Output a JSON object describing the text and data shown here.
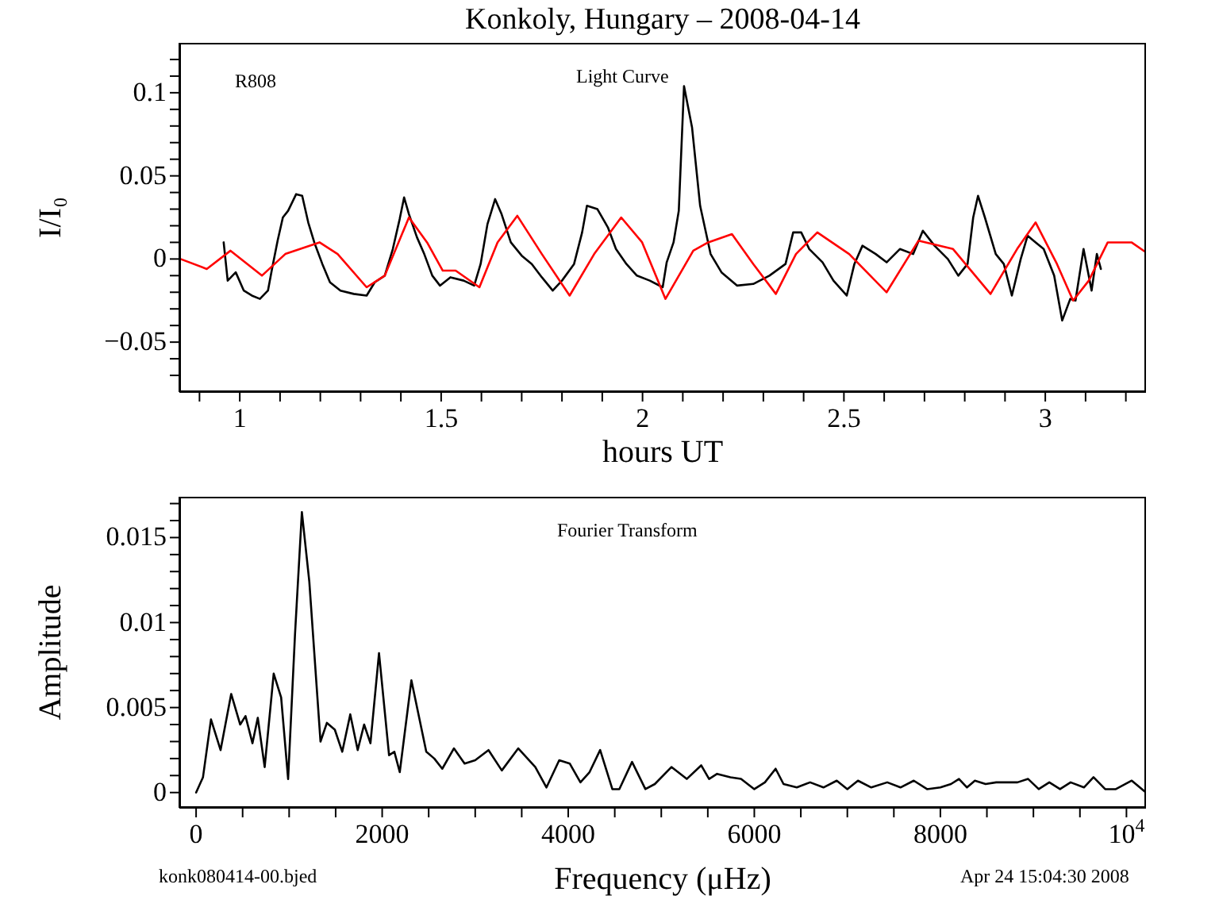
{
  "chart_data": [
    {
      "type": "line",
      "title": "Konkoly, Hungary – 2008-04-14",
      "xlabel": "hours UT",
      "ylabel": "I/I₀",
      "annotations": [
        "R808",
        "Light Curve"
      ],
      "xlim": [
        0.85,
        3.25
      ],
      "ylim": [
        -0.08,
        0.13
      ],
      "xticks": [
        {
          "value": 0.9,
          "label": null
        },
        1,
        {
          "value": 1.1,
          "label": null
        },
        {
          "value": 1.2,
          "label": null
        },
        {
          "value": 1.3,
          "label": null
        },
        {
          "value": 1.4,
          "label": null
        },
        1.5,
        {
          "value": 1.6,
          "label": null
        },
        {
          "value": 1.7,
          "label": null
        },
        {
          "value": 1.8,
          "label": null
        },
        {
          "value": 1.9,
          "label": null
        },
        2,
        {
          "value": 2.1,
          "label": null
        },
        {
          "value": 2.2,
          "label": null
        },
        {
          "value": 2.3,
          "label": null
        },
        {
          "value": 2.4,
          "label": null
        },
        2.5,
        {
          "value": 2.6,
          "label": null
        },
        {
          "value": 2.7,
          "label": null
        },
        {
          "value": 2.8,
          "label": null
        },
        {
          "value": 2.9,
          "label": null
        },
        3,
        {
          "value": 3.1,
          "label": null
        },
        {
          "value": 3.2,
          "label": null
        }
      ],
      "yticks": [
        {
          "value": -0.07,
          "label": null
        },
        {
          "value": -0.06,
          "label": null
        },
        {
          "value": -0.05,
          "label": "−0.05"
        },
        {
          "value": -0.04,
          "label": null
        },
        {
          "value": -0.03,
          "label": null
        },
        {
          "value": -0.02,
          "label": null
        },
        {
          "value": -0.01,
          "label": null
        },
        0,
        {
          "value": 0.01,
          "label": null
        },
        {
          "value": 0.02,
          "label": null
        },
        {
          "value": 0.03,
          "label": null
        },
        {
          "value": 0.04,
          "label": null
        },
        0.05,
        {
          "value": 0.06,
          "label": null
        },
        {
          "value": 0.07,
          "label": null
        },
        {
          "value": 0.08,
          "label": null
        },
        {
          "value": 0.09,
          "label": null
        },
        0.1,
        {
          "value": 0.11,
          "label": null
        },
        {
          "value": 0.12,
          "label": null
        }
      ],
      "series": [
        {
          "color": "#000000",
          "x": [
            0.96,
            0.97,
            0.99,
            1.01,
            1.03,
            1.05,
            1.07,
            1.08,
            1.094,
            1.107,
            1.12,
            1.14,
            1.155,
            1.17,
            1.185,
            1.205,
            1.224,
            1.25,
            1.283,
            1.315,
            1.335,
            1.36,
            1.38,
            1.397,
            1.408,
            1.42,
            1.44,
            1.458,
            1.478,
            1.497,
            1.523,
            1.556,
            1.582,
            1.598,
            1.615,
            1.634,
            1.65,
            1.673,
            1.7,
            1.725,
            1.75,
            1.777,
            1.8,
            1.83,
            1.85,
            1.862,
            1.888,
            1.914,
            1.934,
            1.96,
            1.986,
            2.018,
            2.05,
            2.06,
            2.077,
            2.09,
            2.103,
            2.123,
            2.143,
            2.169,
            2.196,
            2.235,
            2.275,
            2.315,
            2.355,
            2.374,
            2.394,
            2.414,
            2.447,
            2.474,
            2.507,
            2.526,
            2.546,
            2.579,
            2.606,
            2.639,
            2.672,
            2.696,
            2.725,
            2.758,
            2.784,
            2.807,
            2.821,
            2.833,
            2.85,
            2.877,
            2.897,
            2.917,
            2.939,
            2.956,
            2.976,
            2.996,
            3.022,
            3.042,
            3.062,
            3.075,
            3.095,
            3.115,
            3.128,
            3.138
          ],
          "values": [
            0.01,
            -0.013,
            -0.008,
            -0.019,
            -0.022,
            -0.024,
            -0.019,
            -0.006,
            0.011,
            0.025,
            0.029,
            0.039,
            0.038,
            0.022,
            0.01,
            -0.003,
            -0.014,
            -0.019,
            -0.021,
            -0.022,
            -0.014,
            -0.01,
            0.006,
            0.024,
            0.037,
            0.027,
            0.013,
            0.003,
            -0.01,
            -0.016,
            -0.011,
            -0.013,
            -0.016,
            -0.003,
            0.021,
            0.036,
            0.027,
            0.01,
            0.002,
            -0.003,
            -0.011,
            -0.019,
            -0.013,
            -0.003,
            0.016,
            0.032,
            0.03,
            0.019,
            0.006,
            -0.003,
            -0.01,
            -0.013,
            -0.017,
            -0.002,
            0.01,
            0.029,
            0.104,
            0.079,
            0.032,
            0.003,
            -0.008,
            -0.016,
            -0.015,
            -0.01,
            -0.003,
            0.016,
            0.016,
            0.006,
            -0.002,
            -0.013,
            -0.022,
            -0.003,
            0.008,
            0.003,
            -0.002,
            0.006,
            0.003,
            0.017,
            0.008,
            0,
            -0.01,
            -0.003,
            0.025,
            0.038,
            0.025,
            0.003,
            -0.003,
            -0.022,
            0,
            0.014,
            0.01,
            0.006,
            -0.01,
            -0.037,
            -0.024,
            -0.025,
            0.006,
            -0.019,
            0.003,
            -0.006
          ]
        },
        {
          "color": "#ff0000",
          "x": [
            0.853,
            0.918,
            0.977,
            1.055,
            1.113,
            1.198,
            1.243,
            1.315,
            1.36,
            1.42,
            1.465,
            1.504,
            1.536,
            1.595,
            1.64,
            1.689,
            1.75,
            1.819,
            1.88,
            1.947,
            1.999,
            2.057,
            2.126,
            2.163,
            2.222,
            2.275,
            2.331,
            2.381,
            2.434,
            2.513,
            2.606,
            2.685,
            2.771,
            2.864,
            2.93,
            2.976,
            3.029,
            3.069,
            3.108,
            3.155,
            3.214,
            3.25
          ],
          "values": [
            0,
            -0.006,
            0.005,
            -0.01,
            0.003,
            0.01,
            0.003,
            -0.017,
            -0.01,
            0.025,
            0.01,
            -0.007,
            -0.007,
            -0.017,
            0.01,
            0.026,
            0.003,
            -0.022,
            0.003,
            0.025,
            0.01,
            -0.024,
            0.005,
            0.01,
            0.015,
            -0.003,
            -0.021,
            0.003,
            0.016,
            0.003,
            -0.02,
            0.011,
            0.006,
            -0.021,
            0.006,
            0.022,
            -0.003,
            -0.025,
            -0.013,
            0.01,
            0.01,
            0.004
          ]
        }
      ]
    },
    {
      "type": "line",
      "xlabel": "Frequency (μHz)",
      "ylabel": "Amplitude",
      "annotations": [
        "Fourier Transform",
        "konk080414-00.bjed",
        "Apr 24 15:04:30 2008"
      ],
      "xlim": [
        -180,
        10210
      ],
      "ylim": [
        -0.0009,
        0.0174
      ],
      "xticks": [
        0,
        {
          "value": 500,
          "label": null
        },
        {
          "value": 1000,
          "label": null
        },
        {
          "value": 1500,
          "label": null
        },
        2000,
        {
          "value": 2500,
          "label": null
        },
        {
          "value": 3000,
          "label": null
        },
        {
          "value": 3500,
          "label": null
        },
        4000,
        {
          "value": 4500,
          "label": null
        },
        {
          "value": 5000,
          "label": null
        },
        {
          "value": 5500,
          "label": null
        },
        6000,
        {
          "value": 6500,
          "label": null
        },
        {
          "value": 7000,
          "label": null
        },
        {
          "value": 7500,
          "label": null
        },
        8000,
        {
          "value": 8500,
          "label": null
        },
        {
          "value": 9000,
          "label": null
        },
        {
          "value": 9500,
          "label": null
        },
        {
          "value": 10000,
          "label": "10$^{4}$"
        }
      ],
      "yticks": [
        0,
        {
          "value": 0.001,
          "label": null
        },
        {
          "value": 0.002,
          "label": null
        },
        {
          "value": 0.003,
          "label": null
        },
        {
          "value": 0.004,
          "label": null
        },
        0.005,
        {
          "value": 0.006,
          "label": null
        },
        {
          "value": 0.007,
          "label": null
        },
        {
          "value": 0.008,
          "label": null
        },
        {
          "value": 0.009,
          "label": null
        },
        0.01,
        {
          "value": 0.011,
          "label": null
        },
        {
          "value": 0.012,
          "label": null
        },
        {
          "value": 0.013,
          "label": null
        },
        {
          "value": 0.014,
          "label": null
        },
        0.015,
        {
          "value": 0.016,
          "label": null
        },
        {
          "value": 0.017,
          "label": null
        }
      ],
      "series": [
        {
          "color": "#000000",
          "x": [
            0,
            74,
            160,
            263,
            377,
            474,
            531,
            606,
            663,
            737,
            834,
            914,
            989,
            1063,
            1137,
            1217,
            1337,
            1406,
            1491,
            1571,
            1657,
            1737,
            1806,
            1874,
            1966,
            2074,
            2131,
            2189,
            2314,
            2474,
            2560,
            2646,
            2771,
            2886,
            3000,
            3143,
            3286,
            3463,
            3646,
            3766,
            3903,
            4017,
            4131,
            4229,
            4343,
            4474,
            4549,
            4686,
            4829,
            4931,
            5109,
            5274,
            5429,
            5514,
            5600,
            5743,
            5857,
            6000,
            6114,
            6229,
            6314,
            6457,
            6600,
            6743,
            6886,
            7000,
            7114,
            7257,
            7429,
            7571,
            7714,
            7857,
            8000,
            8114,
            8200,
            8286,
            8371,
            8486,
            8600,
            8714,
            8829,
            8943,
            9057,
            9171,
            9286,
            9400,
            9543,
            9646,
            9771,
            9886,
            10057,
            10210
          ],
          "values": [
            0,
            0.0009,
            0.0043,
            0.0025,
            0.0058,
            0.004,
            0.0045,
            0.0029,
            0.0044,
            0.0015,
            0.007,
            0.0056,
            0.0008,
            0.0093,
            0.0165,
            0.0124,
            0.003,
            0.0041,
            0.0037,
            0.0024,
            0.0046,
            0.0025,
            0.004,
            0.0029,
            0.0082,
            0.0022,
            0.0024,
            0.0012,
            0.0066,
            0.0024,
            0.002,
            0.0014,
            0.0026,
            0.0017,
            0.0019,
            0.0025,
            0.0013,
            0.0026,
            0.0015,
            0.0003,
            0.0019,
            0.0017,
            0.0006,
            0.0012,
            0.0025,
            0.0002,
            0.0002,
            0.0018,
            0.0002,
            0.0005,
            0.0015,
            0.0008,
            0.0016,
            0.0008,
            0.0011,
            0.0009,
            0.0008,
            0.0002,
            0.0006,
            0.0014,
            0.0005,
            0.0003,
            0.0006,
            0.0003,
            0.0007,
            0.0002,
            0.0007,
            0.0003,
            0.0006,
            0.0003,
            0.0007,
            0.0002,
            0.0003,
            0.0005,
            0.0008,
            0.0003,
            0.0007,
            0.0005,
            0.0006,
            0.0006,
            0.0006,
            0.0008,
            0.0002,
            0.0006,
            0.0002,
            0.0006,
            0.0003,
            0.0009,
            0.0002,
            0.0002,
            0.0007,
            0
          ]
        }
      ]
    }
  ]
}
